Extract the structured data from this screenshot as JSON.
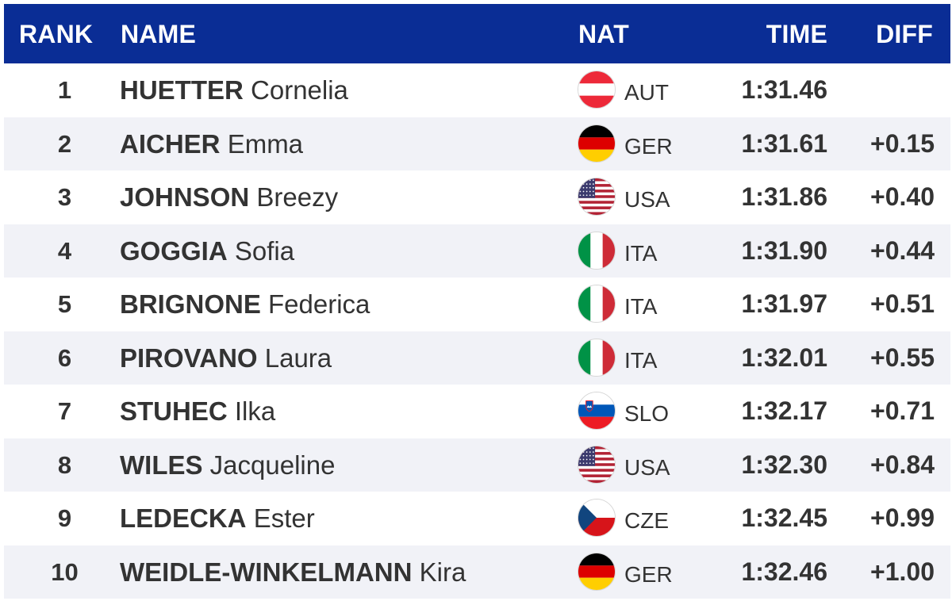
{
  "header": {
    "rank": "RANK",
    "name": "NAME",
    "nat": "NAT",
    "time": "TIME",
    "diff": "DIFF",
    "background_color": "#0a2d95"
  },
  "rows": [
    {
      "rank": "1",
      "last": "HUETTER",
      "first": "Cornelia",
      "nat": "AUT",
      "flag": "flag-austria-icon",
      "time": "1:31.46",
      "diff": ""
    },
    {
      "rank": "2",
      "last": "AICHER",
      "first": "Emma",
      "nat": "GER",
      "flag": "flag-germany-icon",
      "time": "1:31.61",
      "diff": "+0.15"
    },
    {
      "rank": "3",
      "last": "JOHNSON",
      "first": "Breezy",
      "nat": "USA",
      "flag": "flag-usa-icon",
      "time": "1:31.86",
      "diff": "+0.40"
    },
    {
      "rank": "4",
      "last": "GOGGIA",
      "first": "Sofia",
      "nat": "ITA",
      "flag": "flag-italy-icon",
      "time": "1:31.90",
      "diff": "+0.44"
    },
    {
      "rank": "5",
      "last": "BRIGNONE",
      "first": "Federica",
      "nat": "ITA",
      "flag": "flag-italy-icon",
      "time": "1:31.97",
      "diff": "+0.51"
    },
    {
      "rank": "6",
      "last": "PIROVANO",
      "first": "Laura",
      "nat": "ITA",
      "flag": "flag-italy-icon",
      "time": "1:32.01",
      "diff": "+0.55"
    },
    {
      "rank": "7",
      "last": "STUHEC",
      "first": "Ilka",
      "nat": "SLO",
      "flag": "flag-slovenia-icon",
      "time": "1:32.17",
      "diff": "+0.71"
    },
    {
      "rank": "8",
      "last": "WILES",
      "first": "Jacqueline",
      "nat": "USA",
      "flag": "flag-usa-icon",
      "time": "1:32.30",
      "diff": "+0.84"
    },
    {
      "rank": "9",
      "last": "LEDECKA",
      "first": "Ester",
      "nat": "CZE",
      "flag": "flag-czechia-icon",
      "time": "1:32.45",
      "diff": "+0.99"
    },
    {
      "rank": "10",
      "last": "WEIDLE-WINKELMANN",
      "first": "Kira",
      "nat": "GER",
      "flag": "flag-germany-icon",
      "time": "1:32.46",
      "diff": "+1.00"
    }
  ]
}
